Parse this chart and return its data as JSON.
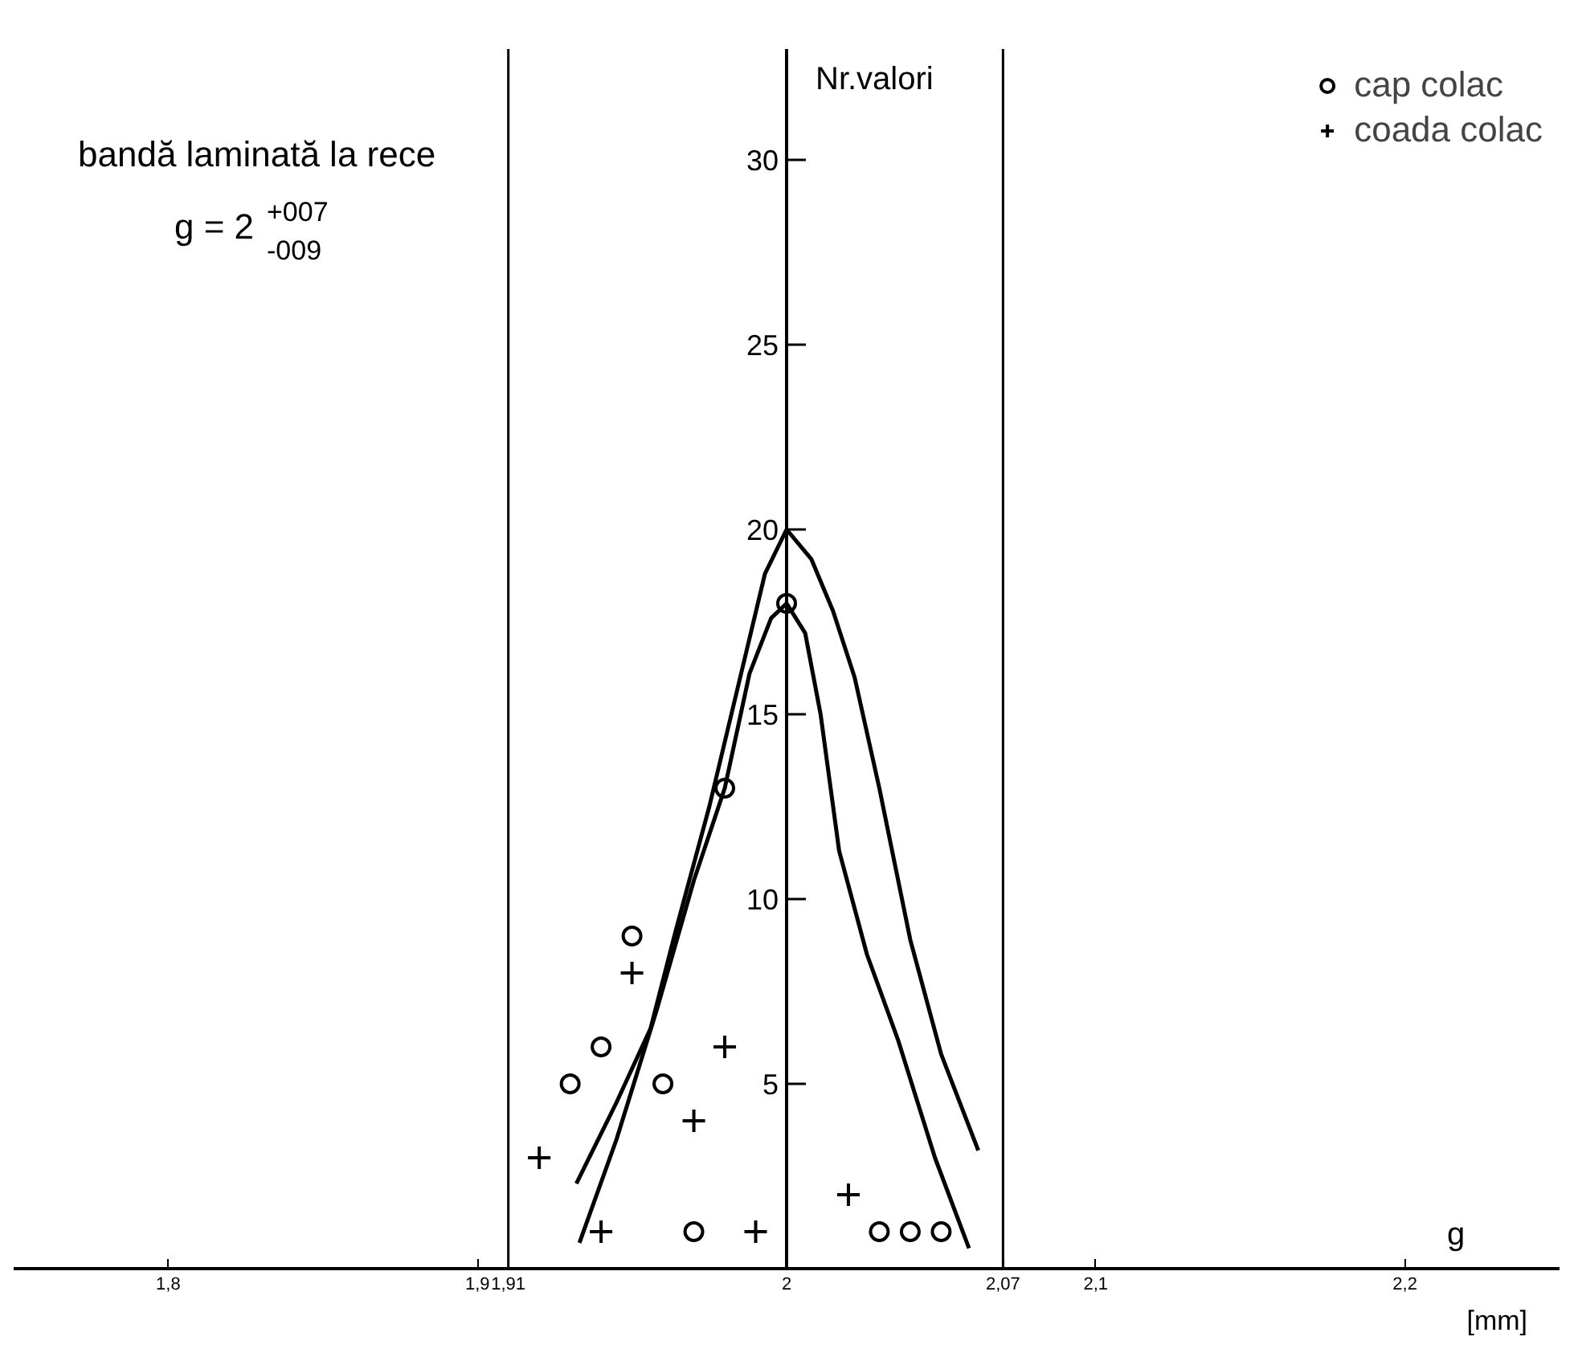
{
  "chart_data": {
    "type": "scatter",
    "title": "bandă laminată la rece",
    "subtitle": "g = 2$^{+007}$$_{-009}$",
    "xlabel": "g",
    "ylabel": "Nr.valori",
    "annotations": [
      "[mm]"
    ],
    "series": [
      {
        "name": "cap colac",
        "color": "#000000",
        "marker": "circle",
        "x": [
          1.93,
          1.94,
          1.95,
          1.96,
          1.97,
          1.98,
          2.0,
          2.03,
          2.04,
          2.05
        ],
        "values": [
          5,
          6,
          9,
          5,
          1,
          13,
          18,
          1,
          1,
          1
        ]
      },
      {
        "name": "coada colac",
        "color": "#000000",
        "marker": "cross",
        "x": [
          1.92,
          1.94,
          1.95,
          1.97,
          1.98,
          1.99,
          2.02
        ],
        "values": [
          3,
          1,
          8,
          4,
          6,
          1,
          2
        ]
      },
      {
        "type": "line",
        "color": "#000000",
        "marker": "none",
        "x": [
          1.932,
          1.945,
          1.956,
          1.964,
          1.975,
          1.985,
          1.993,
          2.0,
          2.008,
          2.015,
          2.022,
          2.03,
          2.04,
          2.05,
          2.062
        ],
        "values": [
          2.3,
          4.5,
          6.5,
          9.1,
          12.5,
          16,
          18.8,
          20,
          19.2,
          17.8,
          16,
          13,
          8.9,
          5.8,
          3.2
        ]
      },
      {
        "type": "line",
        "color": "#000000",
        "marker": "none",
        "x": [
          1.933,
          1.945,
          1.958,
          1.97,
          1.98,
          1.988,
          1.995,
          2.0,
          2.006,
          2.011,
          2.017,
          2.026,
          2.036,
          2.048,
          2.059
        ],
        "values": [
          0.7,
          3.5,
          7,
          10.5,
          13,
          16.1,
          17.6,
          18,
          17.2,
          15,
          11.3,
          8.5,
          6.2,
          3,
          0.55
        ]
      }
    ],
    "ref_lines": [
      {
        "axis": "x",
        "value": 1.91,
        "color": "#000000"
      },
      {
        "axis": "x",
        "value": 2.07,
        "color": "#000000"
      }
    ],
    "xlim": [
      1.75,
      2.25
    ],
    "ylim": [
      0,
      33
    ],
    "xticks": [
      {
        "value": 1.8,
        "label": "1,8"
      },
      {
        "value": 1.9,
        "label": "1,9"
      },
      {
        "value": 1.91,
        "label": "1,91"
      },
      2,
      {
        "value": 2.07,
        "label": "2,07"
      },
      {
        "value": 2.1,
        "label": "2,1"
      },
      {
        "value": 2.2,
        "label": "2,2"
      }
    ],
    "yticks": [
      5,
      10,
      15,
      20,
      25,
      30
    ],
    "grid": false,
    "legend": "top right"
  }
}
